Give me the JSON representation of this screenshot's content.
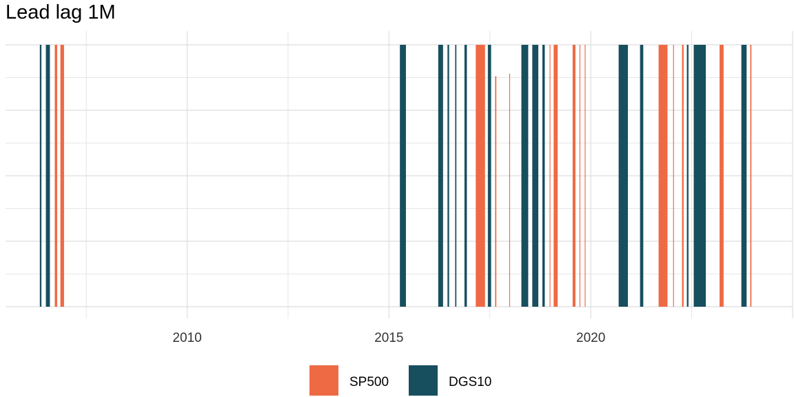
{
  "chart_data": {
    "type": "bar",
    "title": "Lead lag 1M",
    "xlabel": "",
    "ylabel": "",
    "x_axis": "date (decimal year)",
    "xlim": [
      2005.5,
      2025.0
    ],
    "ylim": [
      0,
      1
    ],
    "x_ticks": [
      2010,
      2015,
      2020
    ],
    "x_tick_labels": [
      "2010",
      "2015",
      "2020"
    ],
    "grid": true,
    "legend_position": "bottom",
    "series": [
      {
        "name": "SP500",
        "color": "#EE6A44",
        "bars": [
          {
            "start": 2006.72,
            "end": 2006.78,
            "value": 1.0
          },
          {
            "start": 2006.86,
            "end": 2006.95,
            "value": 1.0
          },
          {
            "start": 2017.15,
            "end": 2017.38,
            "value": 1.0
          },
          {
            "start": 2017.63,
            "end": 2017.66,
            "value": 0.88
          },
          {
            "start": 2017.98,
            "end": 2018.0,
            "value": 0.89
          },
          {
            "start": 2018.98,
            "end": 2019.0,
            "value": 1.0
          },
          {
            "start": 2019.08,
            "end": 2019.18,
            "value": 1.0
          },
          {
            "start": 2019.55,
            "end": 2019.62,
            "value": 1.0
          },
          {
            "start": 2019.72,
            "end": 2019.74,
            "value": 1.0
          },
          {
            "start": 2019.85,
            "end": 2019.87,
            "value": 1.0
          },
          {
            "start": 2021.68,
            "end": 2021.9,
            "value": 1.0
          },
          {
            "start": 2022.04,
            "end": 2022.06,
            "value": 1.0
          },
          {
            "start": 2022.26,
            "end": 2022.3,
            "value": 1.0
          },
          {
            "start": 2023.19,
            "end": 2023.29,
            "value": 1.0
          },
          {
            "start": 2023.95,
            "end": 2023.98,
            "value": 1.0
          }
        ]
      },
      {
        "name": "DGS10",
        "color": "#174F5E",
        "bars": [
          {
            "start": 2006.35,
            "end": 2006.39,
            "value": 1.0
          },
          {
            "start": 2006.5,
            "end": 2006.6,
            "value": 1.0
          },
          {
            "start": 2015.27,
            "end": 2015.42,
            "value": 1.0
          },
          {
            "start": 2016.22,
            "end": 2016.34,
            "value": 1.0
          },
          {
            "start": 2016.45,
            "end": 2016.49,
            "value": 1.0
          },
          {
            "start": 2016.64,
            "end": 2016.67,
            "value": 1.0
          },
          {
            "start": 2016.87,
            "end": 2016.93,
            "value": 1.0
          },
          {
            "start": 2017.45,
            "end": 2017.53,
            "value": 1.0
          },
          {
            "start": 2018.28,
            "end": 2018.45,
            "value": 1.0
          },
          {
            "start": 2018.55,
            "end": 2018.7,
            "value": 1.0
          },
          {
            "start": 2018.8,
            "end": 2018.86,
            "value": 1.0
          },
          {
            "start": 2020.69,
            "end": 2020.92,
            "value": 1.0
          },
          {
            "start": 2021.22,
            "end": 2021.3,
            "value": 1.0
          },
          {
            "start": 2022.38,
            "end": 2022.42,
            "value": 1.0
          },
          {
            "start": 2022.55,
            "end": 2022.85,
            "value": 1.0
          },
          {
            "start": 2023.73,
            "end": 2023.86,
            "value": 1.0
          }
        ]
      }
    ]
  }
}
